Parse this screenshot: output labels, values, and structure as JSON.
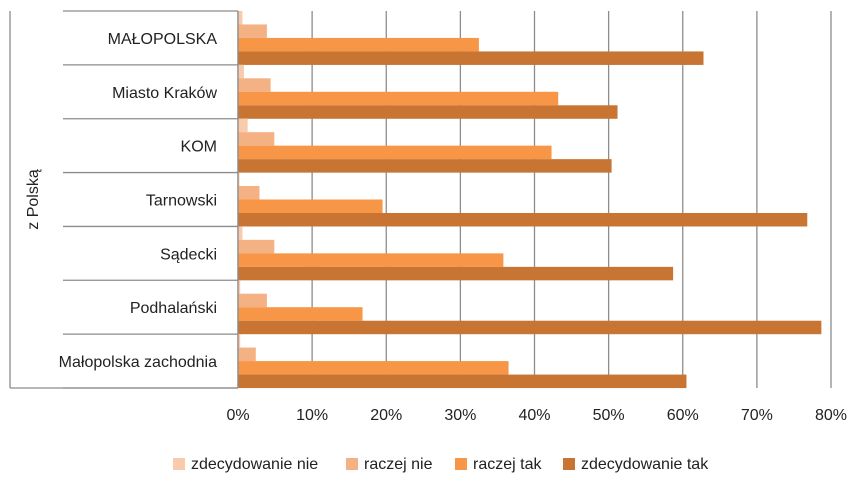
{
  "chart_data": {
    "type": "bar",
    "orientation": "horizontal",
    "group_label": "z Polską",
    "categories": [
      "MAŁOPOLSKA",
      "Miasto Kraków",
      "KOM",
      "Tarnowski",
      "Sądecki",
      "Podhalański",
      "Małopolska zachodnia"
    ],
    "series": [
      {
        "name": "zdecydowanie nie",
        "color": "#f8cbad",
        "values": [
          0.6,
          0.8,
          1.3,
          0.2,
          0.6,
          0.3,
          0.3
        ]
      },
      {
        "name": "raczej nie",
        "color": "#f4b183",
        "values": [
          3.9,
          4.4,
          4.9,
          2.9,
          4.9,
          3.9,
          2.4
        ]
      },
      {
        "name": "raczej tak",
        "color": "#f79646",
        "values": [
          32.5,
          43.2,
          42.3,
          19.5,
          35.8,
          16.8,
          36.5
        ]
      },
      {
        "name": "zdecydowanie tak",
        "color": "#c87533",
        "values": [
          62.8,
          51.2,
          50.4,
          76.8,
          58.7,
          78.7,
          60.5
        ]
      }
    ],
    "xlim": [
      0,
      80
    ],
    "xticks": [
      "0%",
      "10%",
      "20%",
      "30%",
      "40%",
      "50%",
      "60%",
      "70%",
      "80%"
    ],
    "grid": true,
    "legend_position": "bottom"
  }
}
